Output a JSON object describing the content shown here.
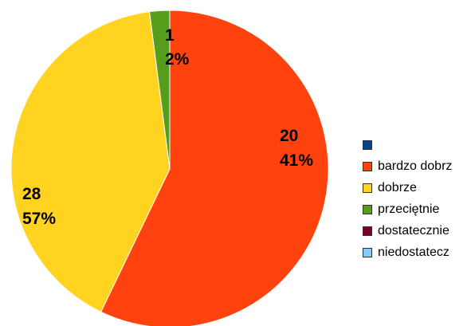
{
  "chart_data": {
    "type": "pie",
    "title": "",
    "categories": [
      "",
      "bardzo dobrze",
      "dobrze",
      "przeciętnie",
      "dostatecznie",
      "niedostatecznie"
    ],
    "values": [
      0,
      28,
      20,
      1,
      0,
      0
    ],
    "percent_labels": [
      "0%",
      "57%",
      "41%",
      "2%",
      "0%",
      "0%"
    ],
    "value_labels": [
      "0",
      "28",
      "20",
      "1",
      "0",
      "0"
    ],
    "colors": [
      "#004586",
      "#ff420e",
      "#ffd320",
      "#579d1c",
      "#7e0021",
      "#83caff"
    ],
    "start_angle_deg": 0,
    "direction": "clockwise",
    "legend": "right",
    "legend_labels_visible": [
      "",
      "bardzo dobrz",
      "dobrze",
      "przeciętnie",
      "dostatecznie",
      "niedostatecz"
    ]
  }
}
